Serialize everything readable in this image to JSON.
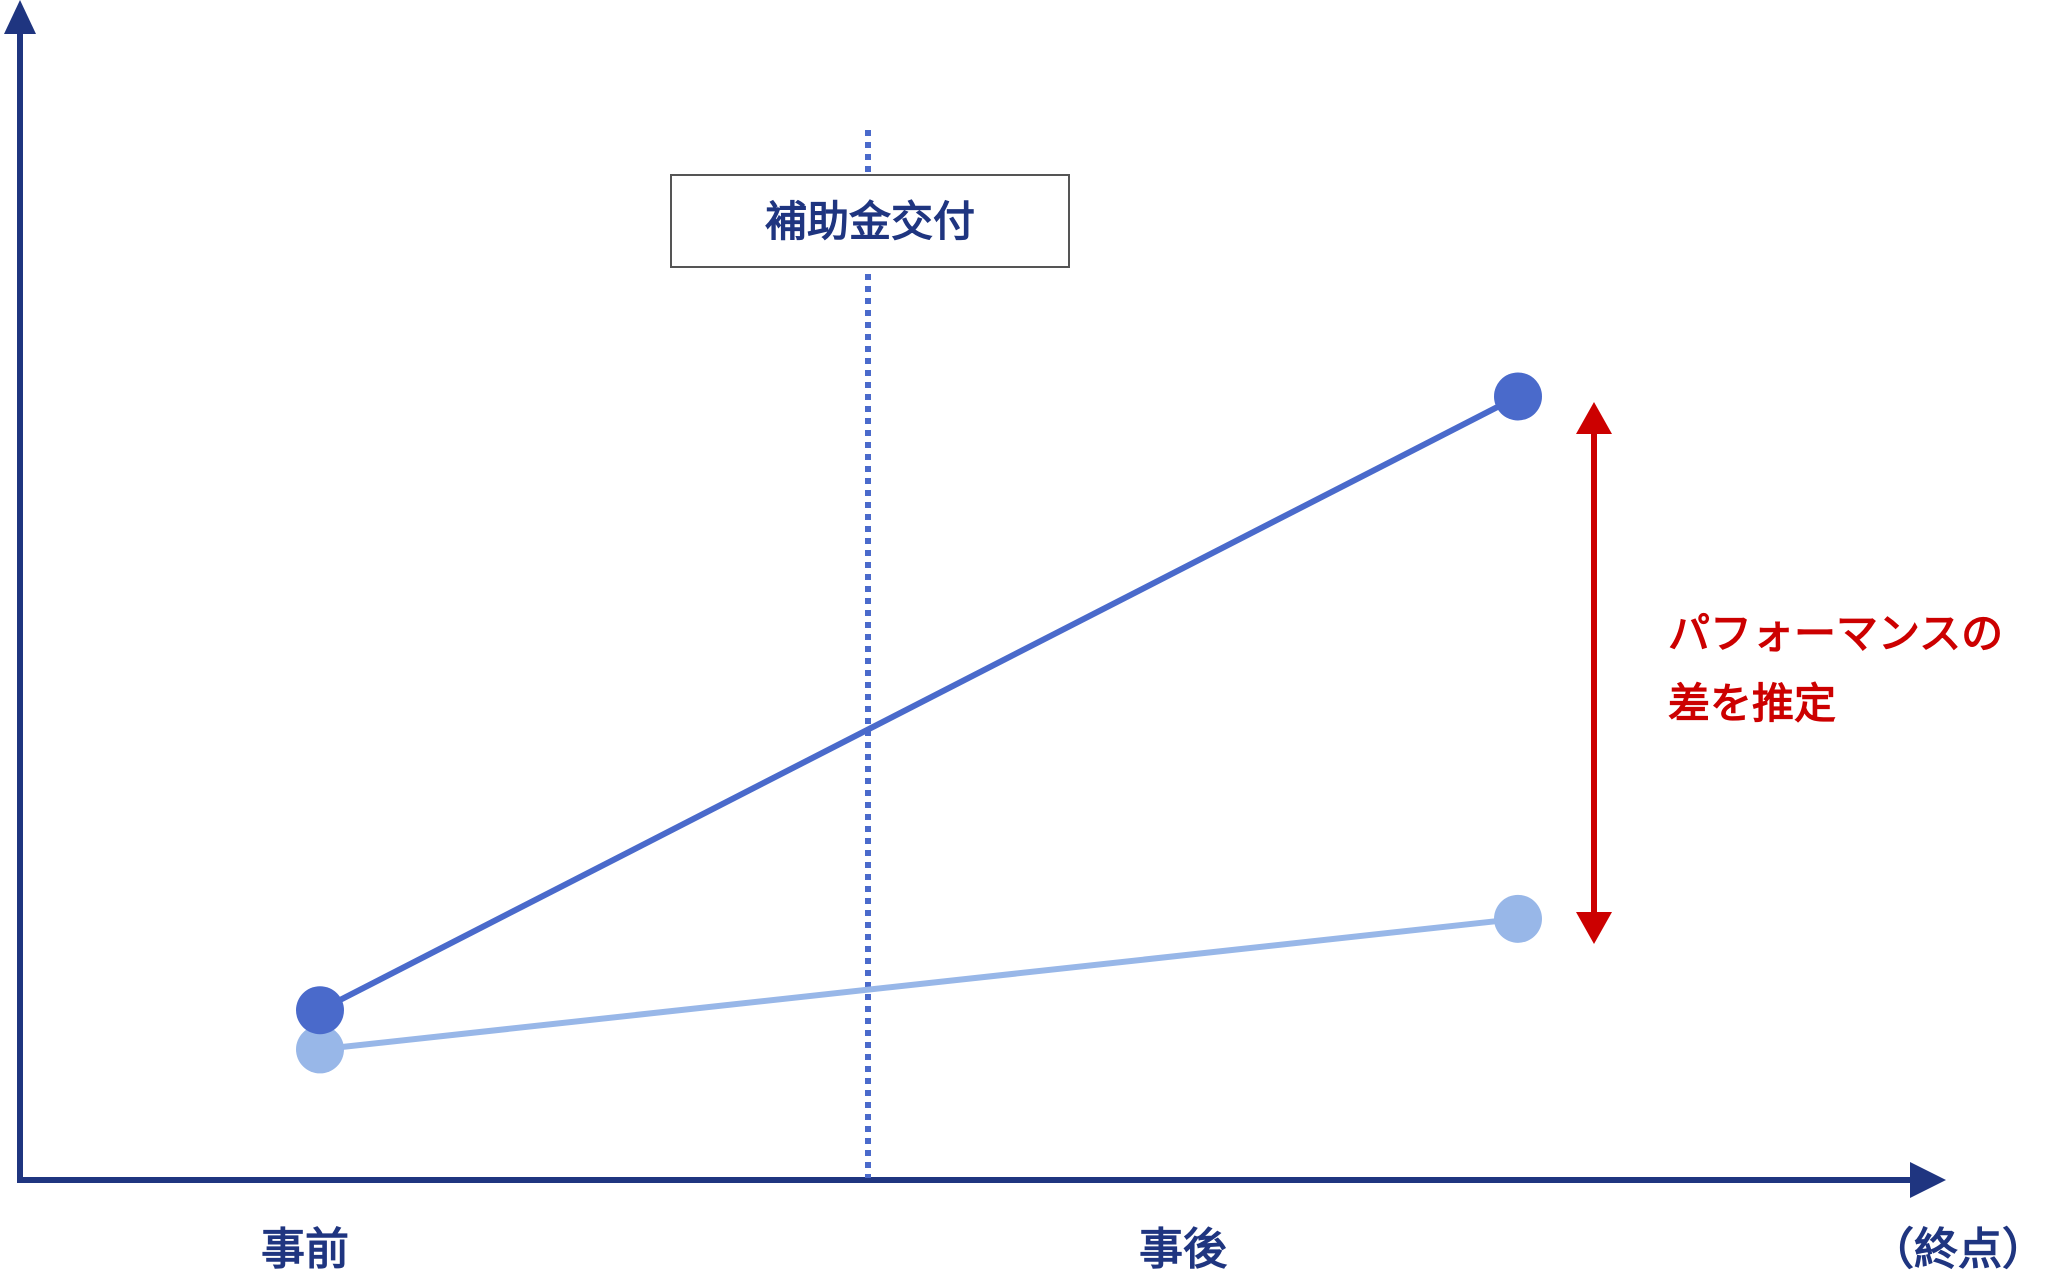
{
  "colors": {
    "axis": "#1f3580",
    "treated_series": "#4a6acb",
    "control_series": "#98b7e8",
    "intervention_line": "#4a6acb",
    "effect_arrow": "#cc0000",
    "event_box_border": "#555555"
  },
  "x_axis": {
    "ticks": [
      "事前",
      "事後"
    ],
    "end_label": "（終点）"
  },
  "event": {
    "label": "補助金交付"
  },
  "effect": {
    "label_line1": "パフォーマンスの",
    "label_line2": "差を推定"
  },
  "chart_data": {
    "type": "line",
    "categories": [
      "事前",
      "事後"
    ],
    "series": [
      {
        "values": [
          1.3,
          6.0
        ]
      },
      {
        "values": [
          1.0,
          2.0
        ]
      }
    ],
    "ylim": [
      0,
      8.5
    ]
  }
}
